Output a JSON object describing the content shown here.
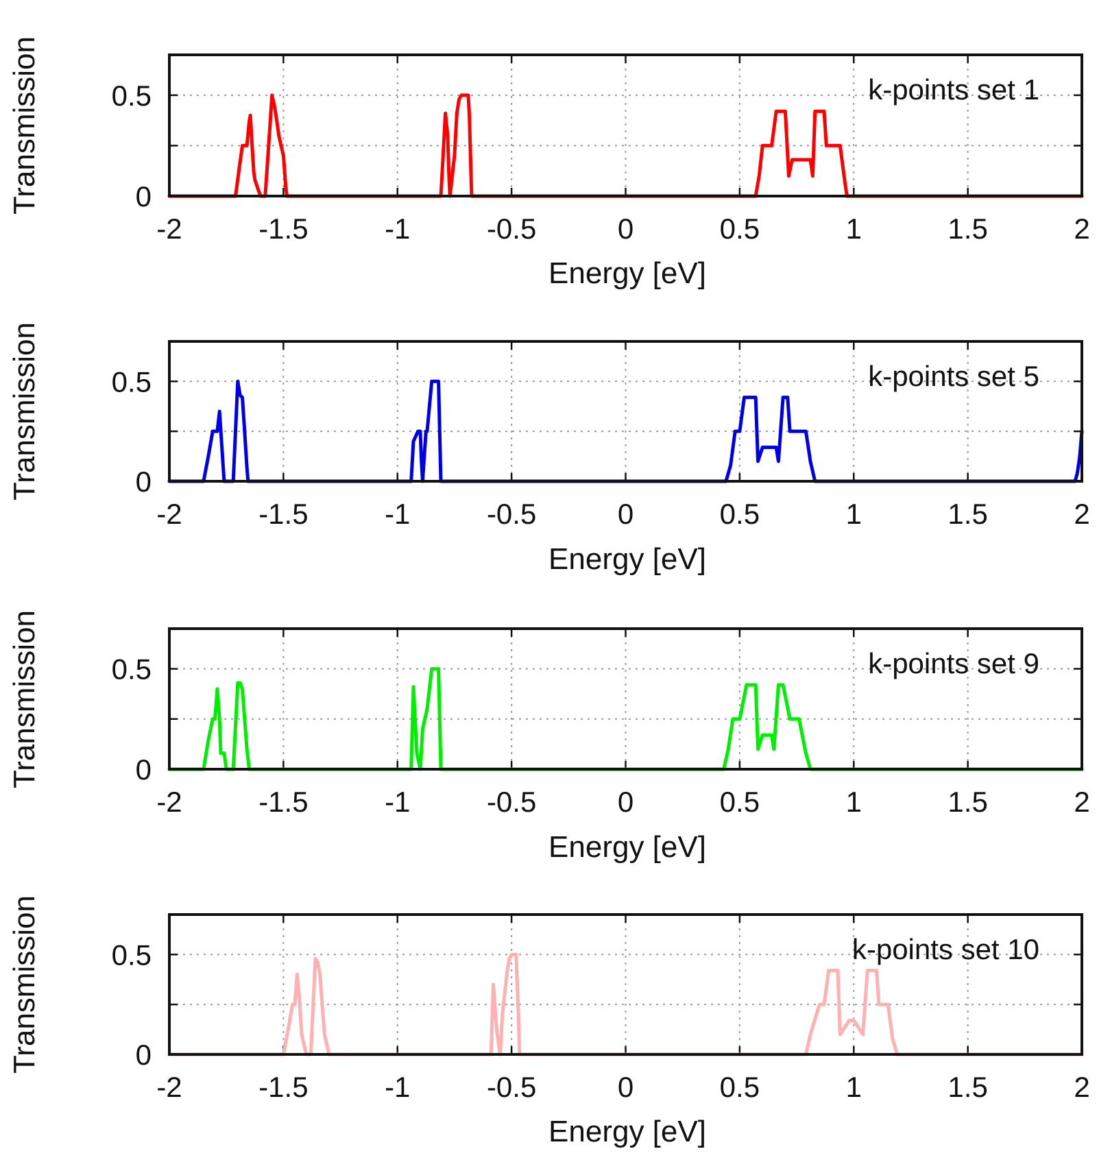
{
  "chart_data": [
    {
      "type": "line",
      "legend": "k-points set 1",
      "xlabel": "Energy [eV]",
      "ylabel": "Transmission",
      "xlim": [
        -2,
        2
      ],
      "ylim": [
        0,
        0.7
      ],
      "xticks": [
        -2,
        -1.5,
        -1,
        -0.5,
        0,
        0.5,
        1,
        1.5,
        2
      ],
      "xtick_labels": [
        "-2",
        "-1.5",
        "-1",
        "-0.5",
        "0",
        "0.5",
        "1",
        "1.5",
        "2"
      ],
      "yticks": [
        0,
        0.25,
        0.5
      ],
      "ytick_labels": [
        "0",
        "",
        "0.5"
      ],
      "grid": true,
      "color": "#ff0000",
      "x": [
        -2,
        -1.71,
        -1.69,
        -1.68,
        -1.66,
        -1.65,
        -1.645,
        -1.64,
        -1.63,
        -1.625,
        -1.61,
        -1.6,
        -1.58,
        -1.56,
        -1.55,
        -1.54,
        -1.53,
        -1.52,
        -1.51,
        -1.5,
        -1.49,
        -1.485,
        -0.81,
        -0.8,
        -0.79,
        -0.78,
        -0.775,
        -0.77,
        -0.75,
        -0.74,
        -0.73,
        -0.72,
        -0.7,
        -0.69,
        -0.685,
        -0.68,
        -0.675,
        0.57,
        0.585,
        0.6,
        0.64,
        0.66,
        0.68,
        0.7,
        0.715,
        0.73,
        0.75,
        0.81,
        0.82,
        0.83,
        0.86,
        0.87,
        0.88,
        0.94,
        0.96,
        0.97,
        2
      ],
      "y": [
        0,
        0,
        0.17,
        0.25,
        0.25,
        0.37,
        0.4,
        0.3,
        0.12,
        0.08,
        0.03,
        0,
        0,
        0.33,
        0.5,
        0.45,
        0.38,
        0.3,
        0.25,
        0.2,
        0.05,
        0,
        0,
        0.2,
        0.41,
        0.3,
        0.12,
        0,
        0.2,
        0.41,
        0.48,
        0.5,
        0.5,
        0.5,
        0.4,
        0.2,
        0,
        0,
        0.1,
        0.25,
        0.25,
        0.42,
        0.42,
        0.42,
        0.1,
        0.18,
        0.18,
        0.18,
        0.1,
        0.42,
        0.42,
        0.42,
        0.25,
        0.25,
        0.08,
        0,
        0
      ]
    },
    {
      "type": "line",
      "legend": "k-points set 5",
      "xlabel": "Energy [eV]",
      "ylabel": "Transmission",
      "xlim": [
        -2,
        2
      ],
      "ylim": [
        0,
        0.7
      ],
      "xticks": [
        -2,
        -1.5,
        -1,
        -0.5,
        0,
        0.5,
        1,
        1.5,
        2
      ],
      "xtick_labels": [
        "-2",
        "-1.5",
        "-1",
        "-0.5",
        "0",
        "0.5",
        "1",
        "1.5",
        "2"
      ],
      "yticks": [
        0,
        0.25,
        0.5
      ],
      "ytick_labels": [
        "0",
        "",
        "0.5"
      ],
      "grid": true,
      "color": "#0000e6",
      "x": [
        -2,
        -1.85,
        -1.83,
        -1.81,
        -1.79,
        -1.78,
        -1.76,
        -1.75,
        -1.72,
        -1.7,
        -1.69,
        -1.68,
        -1.67,
        -1.66,
        -1.655,
        -1.64,
        -0.94,
        -0.93,
        -0.91,
        -0.9,
        -0.895,
        -0.89,
        -0.875,
        -0.87,
        -0.85,
        -0.84,
        -0.82,
        -0.81,
        0.44,
        0.46,
        0.48,
        0.5,
        0.52,
        0.55,
        0.57,
        0.58,
        0.6,
        0.66,
        0.67,
        0.69,
        0.71,
        0.72,
        0.73,
        0.79,
        0.81,
        0.83,
        1.97,
        1.98,
        1.99,
        2
      ],
      "y": [
        0,
        0,
        0.12,
        0.25,
        0.25,
        0.35,
        0,
        0,
        0,
        0.5,
        0.43,
        0.42,
        0.25,
        0.07,
        0,
        0,
        0,
        0.2,
        0.25,
        0.25,
        0.1,
        0,
        0.25,
        0.25,
        0.5,
        0.5,
        0.5,
        0,
        0,
        0.08,
        0.25,
        0.25,
        0.42,
        0.42,
        0.42,
        0.1,
        0.17,
        0.17,
        0.1,
        0.42,
        0.42,
        0.25,
        0.25,
        0.25,
        0.1,
        0,
        0,
        0.04,
        0.12,
        0.25
      ]
    },
    {
      "type": "line",
      "legend": "k-points set 9",
      "xlabel": "Energy [eV]",
      "ylabel": "Transmission",
      "xlim": [
        -2,
        2
      ],
      "ylim": [
        0,
        0.7
      ],
      "xticks": [
        -2,
        -1.5,
        -1,
        -0.5,
        0,
        0.5,
        1,
        1.5,
        2
      ],
      "xtick_labels": [
        "-2",
        "-1.5",
        "-1",
        "-0.5",
        "0",
        "0.5",
        "1",
        "1.5",
        "2"
      ],
      "yticks": [
        0,
        0.25,
        0.5
      ],
      "ytick_labels": [
        "0",
        "",
        "0.5"
      ],
      "grid": true,
      "color": "#00ee00",
      "x": [
        -2,
        -1.85,
        -1.83,
        -1.81,
        -1.8,
        -1.79,
        -1.78,
        -1.775,
        -1.76,
        -1.75,
        -1.73,
        -1.72,
        -1.7,
        -1.69,
        -1.68,
        -1.67,
        -1.66,
        -1.65,
        -0.94,
        -0.93,
        -0.915,
        -0.9,
        -0.89,
        -0.87,
        -0.85,
        -0.84,
        -0.82,
        -0.81,
        0.43,
        0.45,
        0.47,
        0.5,
        0.53,
        0.55,
        0.57,
        0.58,
        0.6,
        0.64,
        0.65,
        0.67,
        0.69,
        0.72,
        0.76,
        0.79,
        0.81,
        2
      ],
      "y": [
        0,
        0,
        0.14,
        0.25,
        0.25,
        0.4,
        0.25,
        0.08,
        0.08,
        0,
        0,
        0,
        0.43,
        0.43,
        0.4,
        0.25,
        0.1,
        0,
        0,
        0.41,
        0.08,
        0,
        0.2,
        0.3,
        0.5,
        0.5,
        0.5,
        0,
        0,
        0.1,
        0.25,
        0.25,
        0.42,
        0.42,
        0.42,
        0.1,
        0.17,
        0.17,
        0.1,
        0.42,
        0.42,
        0.25,
        0.25,
        0.08,
        0,
        0
      ]
    },
    {
      "type": "line",
      "legend": "k-points set 10",
      "xlabel": "Energy [eV]",
      "ylabel": "Transmission",
      "xlim": [
        -2,
        2
      ],
      "ylim": [
        0,
        0.7
      ],
      "xticks": [
        -2,
        -1.5,
        -1,
        -0.5,
        0,
        0.5,
        1,
        1.5,
        2
      ],
      "xtick_labels": [
        "-2",
        "-1.5",
        "-1",
        "-0.5",
        "0",
        "0.5",
        "1",
        "1.5",
        "2"
      ],
      "yticks": [
        0,
        0.25,
        0.5
      ],
      "ytick_labels": [
        "0",
        "",
        "0.5"
      ],
      "grid": true,
      "color": "#ffb0b0",
      "x": [
        -2,
        -1.5,
        -1.48,
        -1.46,
        -1.45,
        -1.44,
        -1.43,
        -1.42,
        -1.41,
        -1.4,
        -1.38,
        -1.36,
        -1.35,
        -1.34,
        -1.33,
        -1.32,
        -1.31,
        -1.3,
        -0.59,
        -0.58,
        -0.565,
        -0.55,
        -0.54,
        -0.52,
        -0.51,
        -0.5,
        -0.48,
        -0.47,
        -0.465,
        0.79,
        0.81,
        0.85,
        0.87,
        0.89,
        0.91,
        0.93,
        0.94,
        0.98,
        1.0,
        1.04,
        1.06,
        1.08,
        1.1,
        1.11,
        1.15,
        1.17,
        1.19,
        2
      ],
      "y": [
        0,
        0,
        0.12,
        0.25,
        0.25,
        0.4,
        0.28,
        0.1,
        0.05,
        0,
        0,
        0.48,
        0.46,
        0.4,
        0.25,
        0.1,
        0.05,
        0,
        0,
        0.35,
        0.12,
        0,
        0.2,
        0.41,
        0.48,
        0.5,
        0.5,
        0.2,
        0,
        0,
        0.1,
        0.25,
        0.25,
        0.42,
        0.42,
        0.42,
        0.1,
        0.17,
        0.17,
        0.1,
        0.42,
        0.42,
        0.42,
        0.25,
        0.25,
        0.08,
        0,
        0
      ]
    }
  ]
}
